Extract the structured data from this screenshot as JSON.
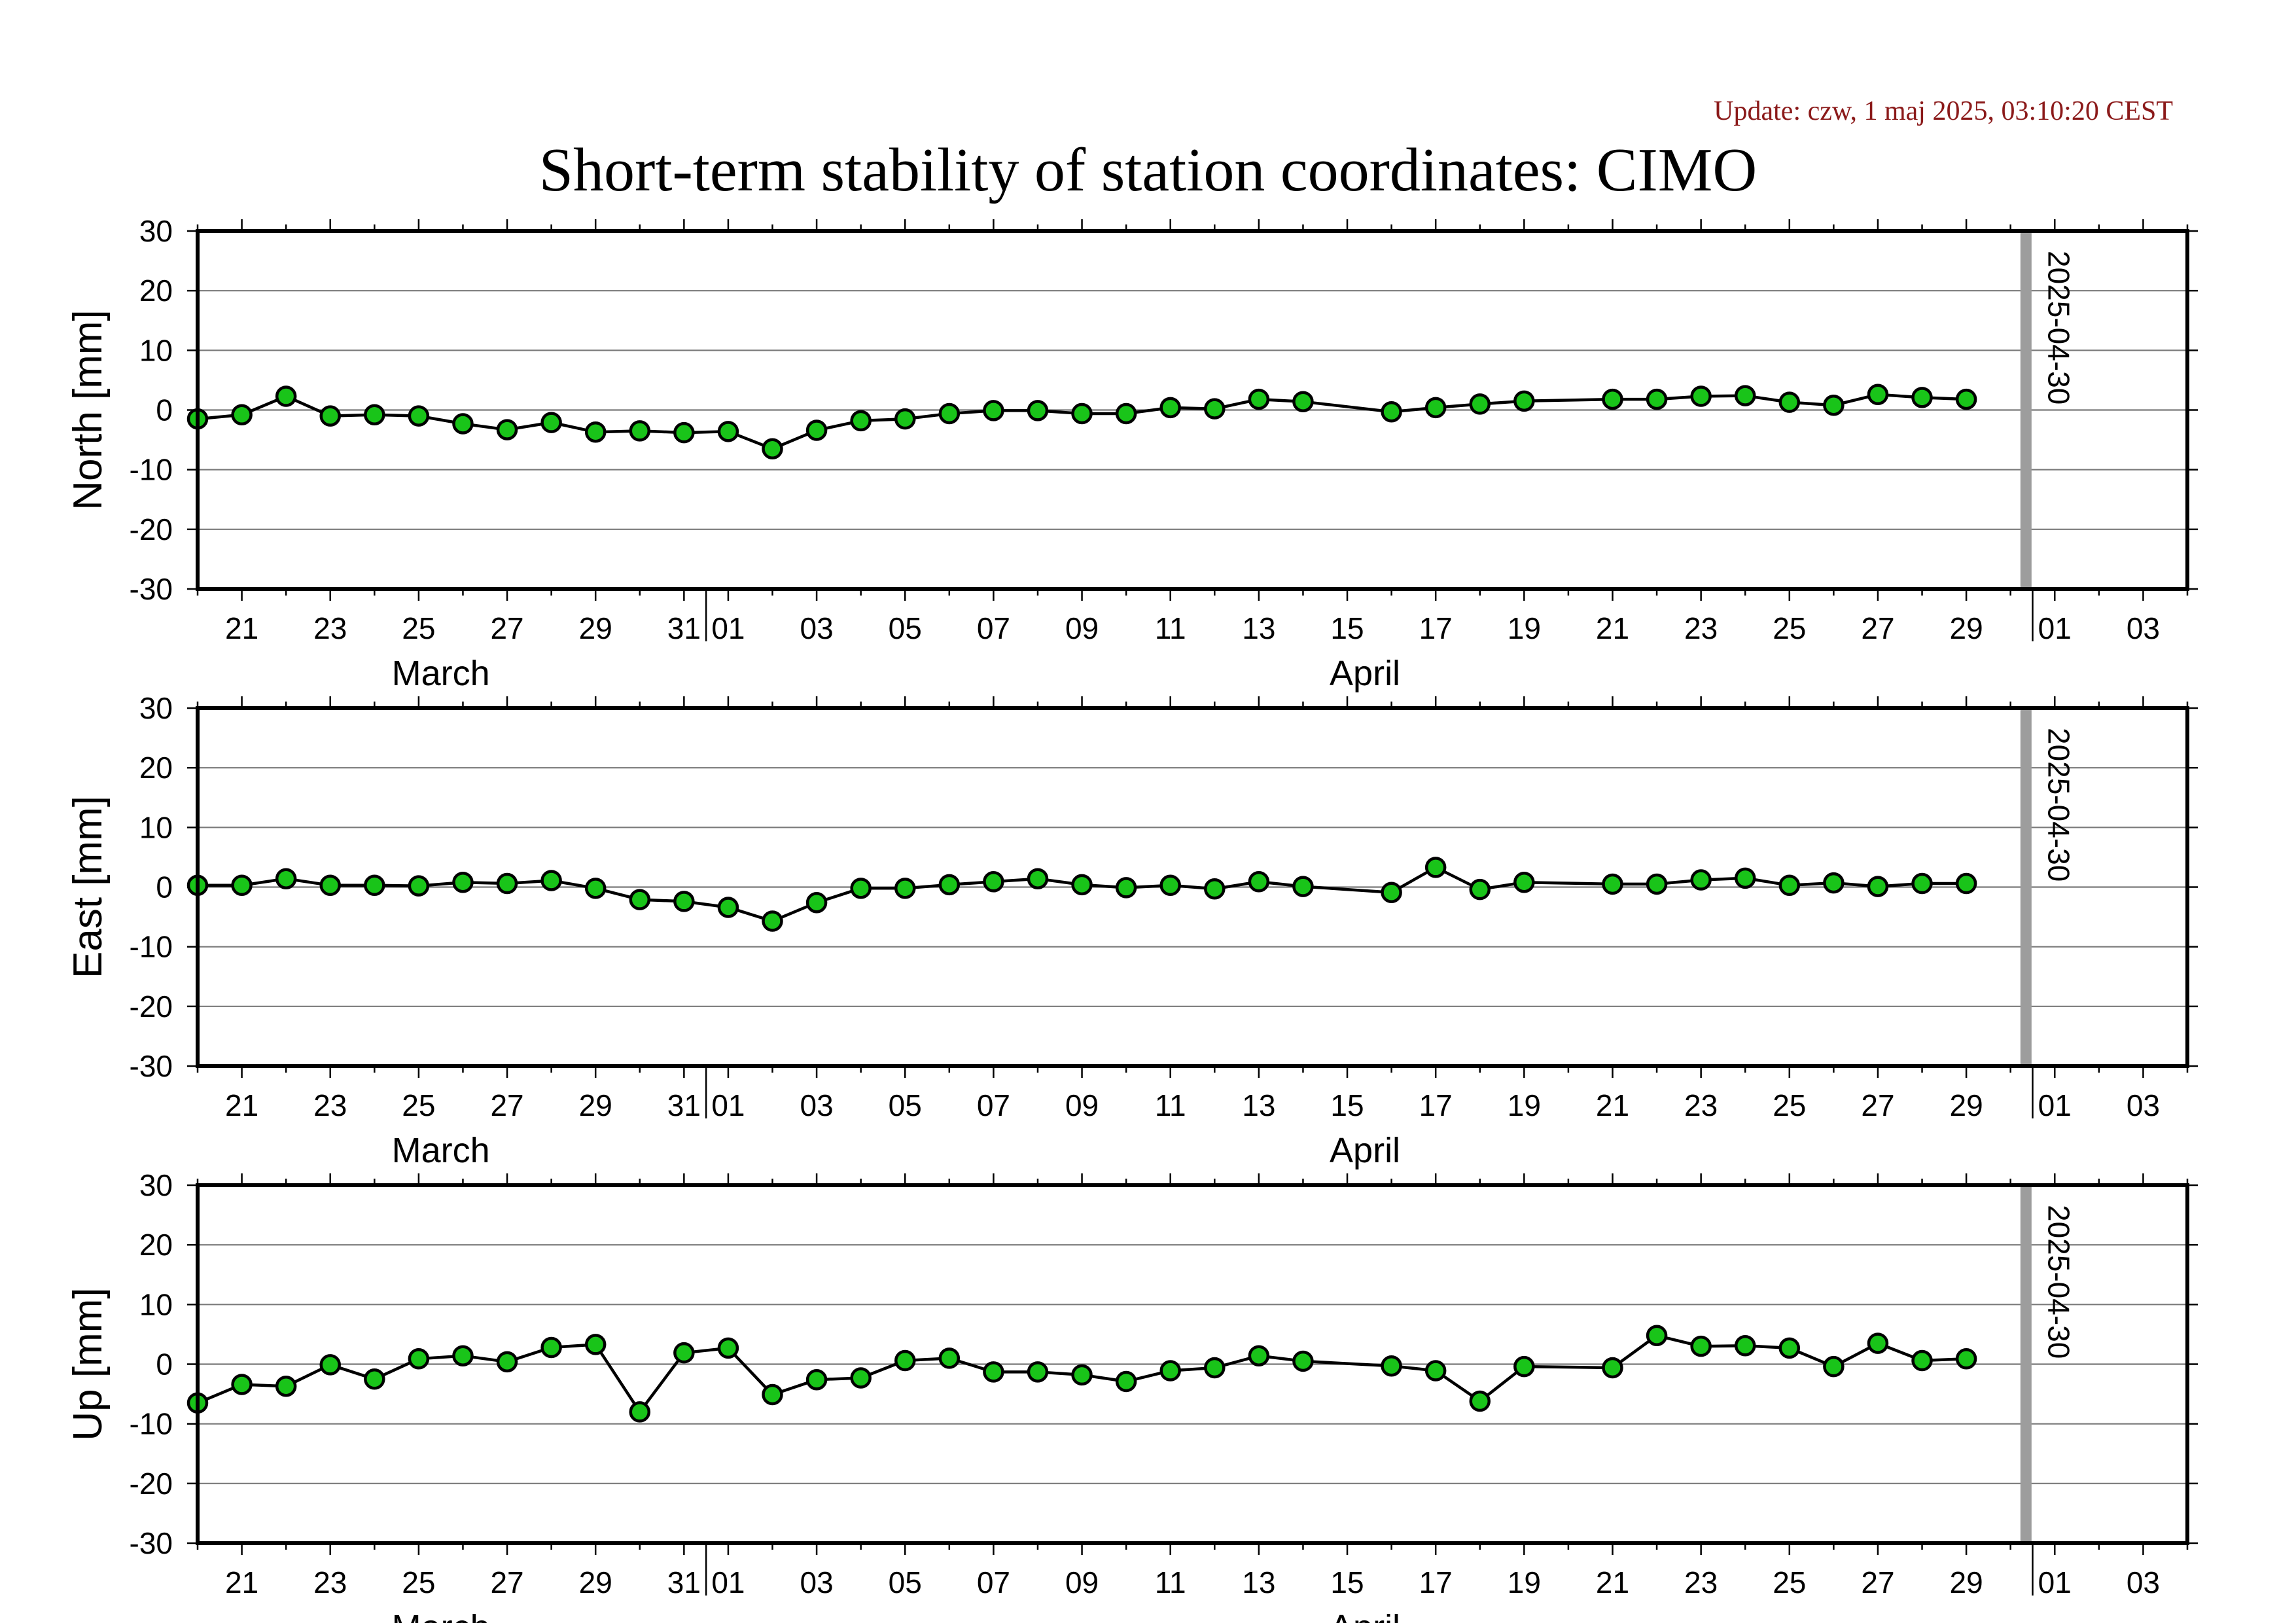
{
  "header": {
    "update": "Update: czw, 1 maj 2025, 03:10:20 CEST",
    "title": "Short-term stability of station coordinates: CIMO"
  },
  "colors": {
    "point_fill": "#19c419",
    "marker": "#9d9d9d",
    "update_text": "#8b1a1a"
  },
  "chart_data": [
    {
      "type": "scatter",
      "ylabel": "North [mm]",
      "ylim": [
        -30,
        30
      ],
      "xlim": [
        "2025-03-20",
        "2025-05-04"
      ],
      "x_tick_labels": [
        "21",
        "23",
        "25",
        "27",
        "29",
        "31",
        "01",
        "03",
        "05",
        "07",
        "09",
        "11",
        "13",
        "15",
        "17",
        "19",
        "21",
        "23",
        "25",
        "27",
        "29",
        "01",
        "03"
      ],
      "month_labels": [
        "March",
        "April"
      ],
      "yticks": [
        "30",
        "20",
        "10",
        "0",
        "-10",
        "-20",
        "-30"
      ],
      "grid": true,
      "marker_line": {
        "date": "2025-04-30",
        "label": "2025-04-30"
      },
      "series": [
        {
          "x": [
            "2025-03-20",
            "2025-03-21",
            "2025-03-22",
            "2025-03-23",
            "2025-03-24",
            "2025-03-25",
            "2025-03-26",
            "2025-03-27",
            "2025-03-28",
            "2025-03-29",
            "2025-03-30",
            "2025-03-31",
            "2025-04-01",
            "2025-04-02",
            "2025-04-03",
            "2025-04-04",
            "2025-04-05",
            "2025-04-06",
            "2025-04-07",
            "2025-04-08",
            "2025-04-09",
            "2025-04-10",
            "2025-04-11",
            "2025-04-12",
            "2025-04-13",
            "2025-04-14",
            "2025-04-16",
            "2025-04-17",
            "2025-04-18",
            "2025-04-19",
            "2025-04-21",
            "2025-04-22",
            "2025-04-23",
            "2025-04-24",
            "2025-04-25",
            "2025-04-26",
            "2025-04-27",
            "2025-04-28",
            "2025-04-29"
          ],
          "y": [
            -1.5,
            -0.8,
            2.3,
            -1.0,
            -0.8,
            -1.0,
            -2.3,
            -3.3,
            -2.1,
            -3.7,
            -3.5,
            -3.8,
            -3.6,
            -6.5,
            -3.4,
            -1.8,
            -1.5,
            -0.6,
            -0.1,
            -0.1,
            -0.6,
            -0.6,
            0.4,
            0.2,
            1.8,
            1.4,
            -0.3,
            0.4,
            1.0,
            1.5,
            1.8,
            1.8,
            2.3,
            2.4,
            1.3,
            0.8,
            2.6,
            2.1,
            1.8
          ]
        }
      ]
    },
    {
      "type": "scatter",
      "ylabel": "East [mm]",
      "ylim": [
        -30,
        30
      ],
      "xlim": [
        "2025-03-20",
        "2025-05-04"
      ],
      "x_tick_labels": [
        "21",
        "23",
        "25",
        "27",
        "29",
        "31",
        "01",
        "03",
        "05",
        "07",
        "09",
        "11",
        "13",
        "15",
        "17",
        "19",
        "21",
        "23",
        "25",
        "27",
        "29",
        "01",
        "03"
      ],
      "month_labels": [
        "March",
        "April"
      ],
      "yticks": [
        "30",
        "20",
        "10",
        "0",
        "-10",
        "-20",
        "-30"
      ],
      "grid": true,
      "marker_line": {
        "date": "2025-04-30",
        "label": "2025-04-30"
      },
      "series": [
        {
          "x": [
            "2025-03-20",
            "2025-03-21",
            "2025-03-22",
            "2025-03-23",
            "2025-03-24",
            "2025-03-25",
            "2025-03-26",
            "2025-03-27",
            "2025-03-28",
            "2025-03-29",
            "2025-03-30",
            "2025-03-31",
            "2025-04-01",
            "2025-04-02",
            "2025-04-03",
            "2025-04-04",
            "2025-04-05",
            "2025-04-06",
            "2025-04-07",
            "2025-04-08",
            "2025-04-09",
            "2025-04-10",
            "2025-04-11",
            "2025-04-12",
            "2025-04-13",
            "2025-04-14",
            "2025-04-16",
            "2025-04-17",
            "2025-04-18",
            "2025-04-19",
            "2025-04-21",
            "2025-04-22",
            "2025-04-23",
            "2025-04-24",
            "2025-04-25",
            "2025-04-26",
            "2025-04-27",
            "2025-04-28",
            "2025-04-29"
          ],
          "y": [
            0.3,
            0.3,
            1.4,
            0.3,
            0.3,
            0.2,
            0.8,
            0.6,
            1.1,
            -0.2,
            -2.1,
            -2.4,
            -3.4,
            -5.7,
            -2.6,
            -0.2,
            -0.2,
            0.4,
            0.9,
            1.4,
            0.4,
            -0.1,
            0.3,
            -0.3,
            0.9,
            0.1,
            -0.9,
            3.3,
            -0.4,
            0.8,
            0.5,
            0.5,
            1.2,
            1.5,
            0.3,
            0.7,
            0.1,
            0.6,
            0.6
          ]
        }
      ]
    },
    {
      "type": "scatter",
      "ylabel": "Up [mm]",
      "ylim": [
        -30,
        30
      ],
      "xlim": [
        "2025-03-20",
        "2025-05-04"
      ],
      "x_tick_labels": [
        "21",
        "23",
        "25",
        "27",
        "29",
        "31",
        "01",
        "03",
        "05",
        "07",
        "09",
        "11",
        "13",
        "15",
        "17",
        "19",
        "21",
        "23",
        "25",
        "27",
        "29",
        "01",
        "03"
      ],
      "month_labels": [
        "March",
        "April"
      ],
      "yticks": [
        "30",
        "20",
        "10",
        "0",
        "-10",
        "-20",
        "-30"
      ],
      "grid": true,
      "marker_line": {
        "date": "2025-04-30",
        "label": "2025-04-30"
      },
      "series": [
        {
          "x": [
            "2025-03-20",
            "2025-03-21",
            "2025-03-22",
            "2025-03-23",
            "2025-03-24",
            "2025-03-25",
            "2025-03-26",
            "2025-03-27",
            "2025-03-28",
            "2025-03-29",
            "2025-03-30",
            "2025-03-31",
            "2025-04-01",
            "2025-04-02",
            "2025-04-03",
            "2025-04-04",
            "2025-04-05",
            "2025-04-06",
            "2025-04-07",
            "2025-04-08",
            "2025-04-09",
            "2025-04-10",
            "2025-04-11",
            "2025-04-12",
            "2025-04-13",
            "2025-04-14",
            "2025-04-16",
            "2025-04-17",
            "2025-04-18",
            "2025-04-19",
            "2025-04-21",
            "2025-04-22",
            "2025-04-23",
            "2025-04-24",
            "2025-04-25",
            "2025-04-26",
            "2025-04-27",
            "2025-04-28",
            "2025-04-29"
          ],
          "y": [
            -6.5,
            -3.4,
            -3.7,
            -0.1,
            -2.5,
            0.9,
            1.4,
            0.4,
            2.8,
            3.3,
            -8.0,
            1.9,
            2.7,
            -5.1,
            -2.6,
            -2.3,
            0.6,
            1.0,
            -1.3,
            -1.3,
            -1.8,
            -2.9,
            -1.1,
            -0.6,
            1.4,
            0.5,
            -0.3,
            -1.1,
            -6.2,
            -0.4,
            -0.6,
            4.8,
            3.0,
            3.1,
            2.7,
            -0.4,
            3.5,
            0.6,
            0.9
          ]
        }
      ]
    }
  ]
}
